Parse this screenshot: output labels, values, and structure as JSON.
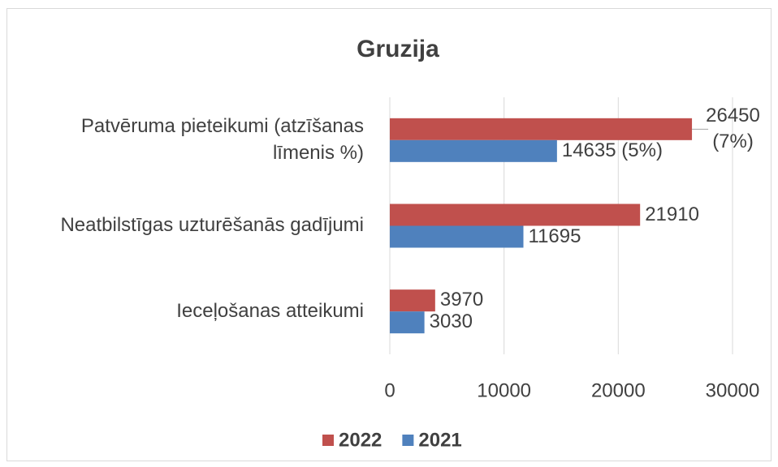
{
  "chart_data": {
    "type": "hbar",
    "title": "Gruzija",
    "categories": [
      "Patvēruma pieteikumi (atzīšanas līmenis %)",
      "Neatbilstīgas uzturēšanās gadījumi",
      "Ieceļošanas atteikumi"
    ],
    "series": [
      {
        "name": "2022",
        "color": "#c0504d",
        "values": [
          26450,
          21910,
          3970
        ],
        "value_labels": [
          "26450 (7%)",
          "21910",
          "3970"
        ]
      },
      {
        "name": "2021",
        "color": "#4f81bd",
        "values": [
          14635,
          11695,
          3030
        ],
        "value_labels": [
          "14635 (5%)",
          "11695",
          "3030"
        ]
      }
    ],
    "xlim": [
      0,
      30000
    ],
    "xticks": [
      0,
      10000,
      20000,
      30000
    ],
    "grid": true,
    "legend": "bottom"
  }
}
